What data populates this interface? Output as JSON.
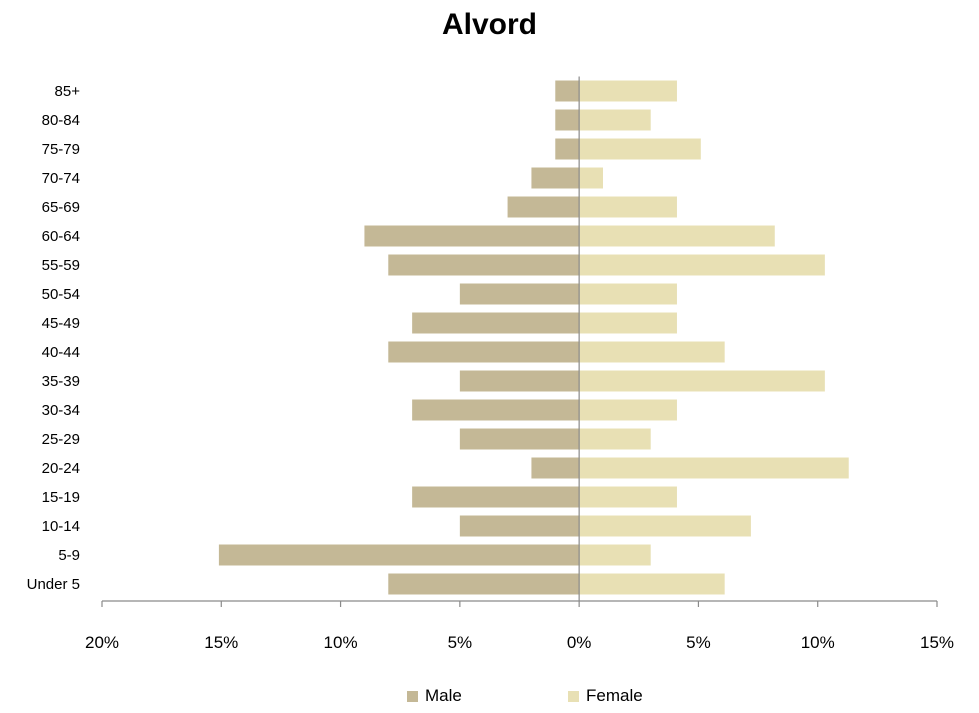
{
  "chart_data": {
    "type": "bar",
    "orientation": "horizontal",
    "title": "Alvord",
    "categories": [
      "Under 5",
      "5-9",
      "10-14",
      "15-19",
      "20-24",
      "25-29",
      "30-34",
      "35-39",
      "40-44",
      "45-49",
      "50-54",
      "55-59",
      "60-64",
      "65-69",
      "70-74",
      "75-79",
      "80-84",
      "85+"
    ],
    "series": [
      {
        "name": "Male",
        "color": "#c4b896",
        "values": [
          -8.0,
          -15.1,
          -5.0,
          -7.0,
          -2.0,
          -5.0,
          -7.0,
          -5.0,
          -8.0,
          -7.0,
          -5.0,
          -8.0,
          -9.0,
          -3.0,
          -2.0,
          -1.0,
          -1.0,
          -1.0
        ]
      },
      {
        "name": "Female",
        "color": "#e8e0b4",
        "values": [
          6.1,
          3.0,
          7.2,
          4.1,
          11.3,
          3.0,
          4.1,
          10.3,
          6.1,
          4.1,
          4.1,
          10.3,
          8.2,
          4.1,
          1.0,
          5.1,
          3.0,
          4.1
        ]
      }
    ],
    "xlim": [
      -20,
      15
    ],
    "xticks": [
      -20,
      -15,
      -10,
      -5,
      0,
      5,
      10,
      15
    ],
    "xtick_labels": [
      "20%",
      "15%",
      "10%",
      "5%",
      "0%",
      "5%",
      "10%",
      "15%"
    ],
    "legend_position": "bottom",
    "grid": false
  }
}
